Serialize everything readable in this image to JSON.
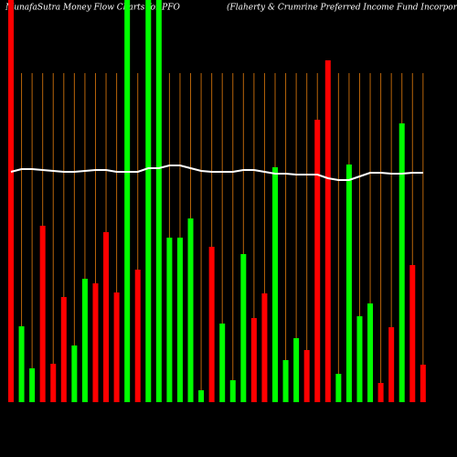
{
  "chart_data": {
    "type": "bar",
    "title": "MunafaSutra  Money Flow  Charts for PFO",
    "subtitle": "(Flaherty & Crumrine   Preferred Income    Fund Incorporat",
    "categories": [
      null,
      null,
      null,
      null,
      null,
      null,
      null,
      null,
      null,
      null,
      null,
      null,
      null,
      null,
      null,
      null,
      null,
      null,
      null,
      null,
      null,
      null,
      null,
      null,
      null,
      null,
      null,
      null,
      null,
      null,
      null,
      null,
      null,
      null,
      null,
      null,
      null,
      null,
      null,
      null
    ],
    "values": [
      440,
      83,
      37,
      193,
      42,
      115,
      62,
      135,
      130,
      186,
      120,
      440,
      145,
      440,
      440,
      180,
      180,
      201,
      13,
      170,
      86,
      24,
      162,
      92,
      119,
      257,
      46,
      70,
      57,
      309,
      374,
      31,
      260,
      94,
      108,
      21,
      82,
      305,
      150,
      41
    ],
    "colors": [
      "#ff0000",
      "#00ff00",
      "#00ff00",
      "#ff0000",
      "#ff0000",
      "#ff0000",
      "#00ff00",
      "#00ff00",
      "#ff0000",
      "#ff0000",
      "#ff0000",
      "#00ff00",
      "#ff0000",
      "#00ff00",
      "#00ff00",
      "#00ff00",
      "#00ff00",
      "#00ff00",
      "#00ff00",
      "#ff0000",
      "#00ff00",
      "#00ff00",
      "#00ff00",
      "#ff0000",
      "#ff0000",
      "#00ff00",
      "#00ff00",
      "#00ff00",
      "#ff0000",
      "#ff0000",
      "#ff0000",
      "#00ff00",
      "#00ff00",
      "#00ff00",
      "#00ff00",
      "#ff0000",
      "#ff0000",
      "#00ff00",
      "#ff0000",
      "#ff0000"
    ],
    "line_values": [
      252,
      255,
      255,
      254,
      253,
      252,
      252,
      253,
      254,
      254,
      252,
      252,
      252,
      256,
      256,
      259,
      259,
      256,
      253,
      252,
      252,
      252,
      254,
      254,
      252,
      250,
      250,
      249,
      249,
      249,
      245,
      243,
      243,
      247,
      251,
      251,
      250,
      250,
      251,
      251
    ],
    "line_color": "#ffffff",
    "grid_color": "#b8650a",
    "ylim": [
      0,
      440
    ],
    "grid": true
  }
}
